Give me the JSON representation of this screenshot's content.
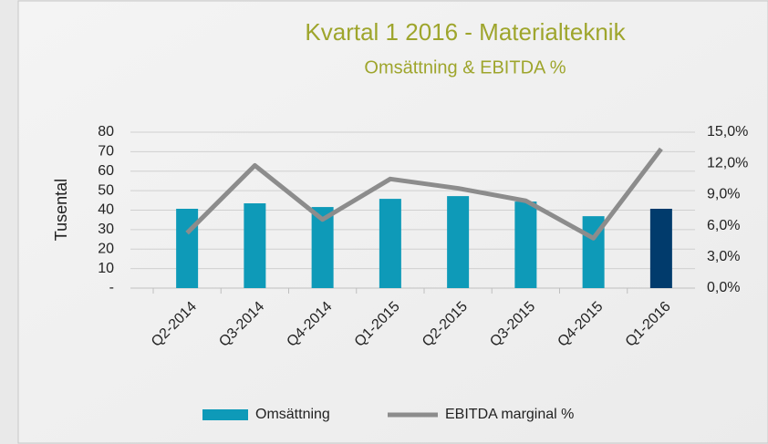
{
  "chart_data": {
    "type": "bar_line",
    "title": "Kvartal 1 2016 - Materialteknik",
    "subtitle": "Omsättning & EBITDA %",
    "ylabel": "Tusental",
    "categories": [
      "Q2-2014",
      "Q3-2014",
      "Q4-2014",
      "Q1-2015",
      "Q2-2015",
      "Q3-2015",
      "Q4-2015",
      "Q1-2016"
    ],
    "series": [
      {
        "name": "Omsättning",
        "type": "bar",
        "color": "#0e9ab8",
        "colors": [
          "#0e9ab8",
          "#0e9ab8",
          "#0e9ab8",
          "#0e9ab8",
          "#0e9ab8",
          "#0e9ab8",
          "#0e9ab8",
          "#013b6c"
        ],
        "values": [
          40.7,
          43.5,
          41.6,
          45.8,
          47.2,
          44.4,
          36.9,
          40.7
        ]
      },
      {
        "name": "EBITDA marginal %",
        "type": "line",
        "axis": "y2",
        "color": "#8c8c8c",
        "values": [
          5.3,
          11.8,
          6.6,
          10.5,
          9.6,
          8.4,
          4.8,
          13.4
        ]
      }
    ],
    "ylim": [
      0,
      80
    ],
    "yticks": [
      {
        "value": 0,
        "label": "-"
      },
      10,
      20,
      30,
      40,
      50,
      60,
      70,
      80
    ],
    "y2lim": [
      0,
      15
    ],
    "y2ticks": [
      {
        "value": 0,
        "label": "0,0%"
      },
      {
        "value": 3,
        "label": "3,0%"
      },
      {
        "value": 6,
        "label": "6,0%"
      },
      {
        "value": 9,
        "label": "9,0%"
      },
      {
        "value": 12,
        "label": "12,0%"
      },
      {
        "value": 15,
        "label": "15,0%"
      }
    ],
    "grid": true,
    "legend": "bottom"
  }
}
